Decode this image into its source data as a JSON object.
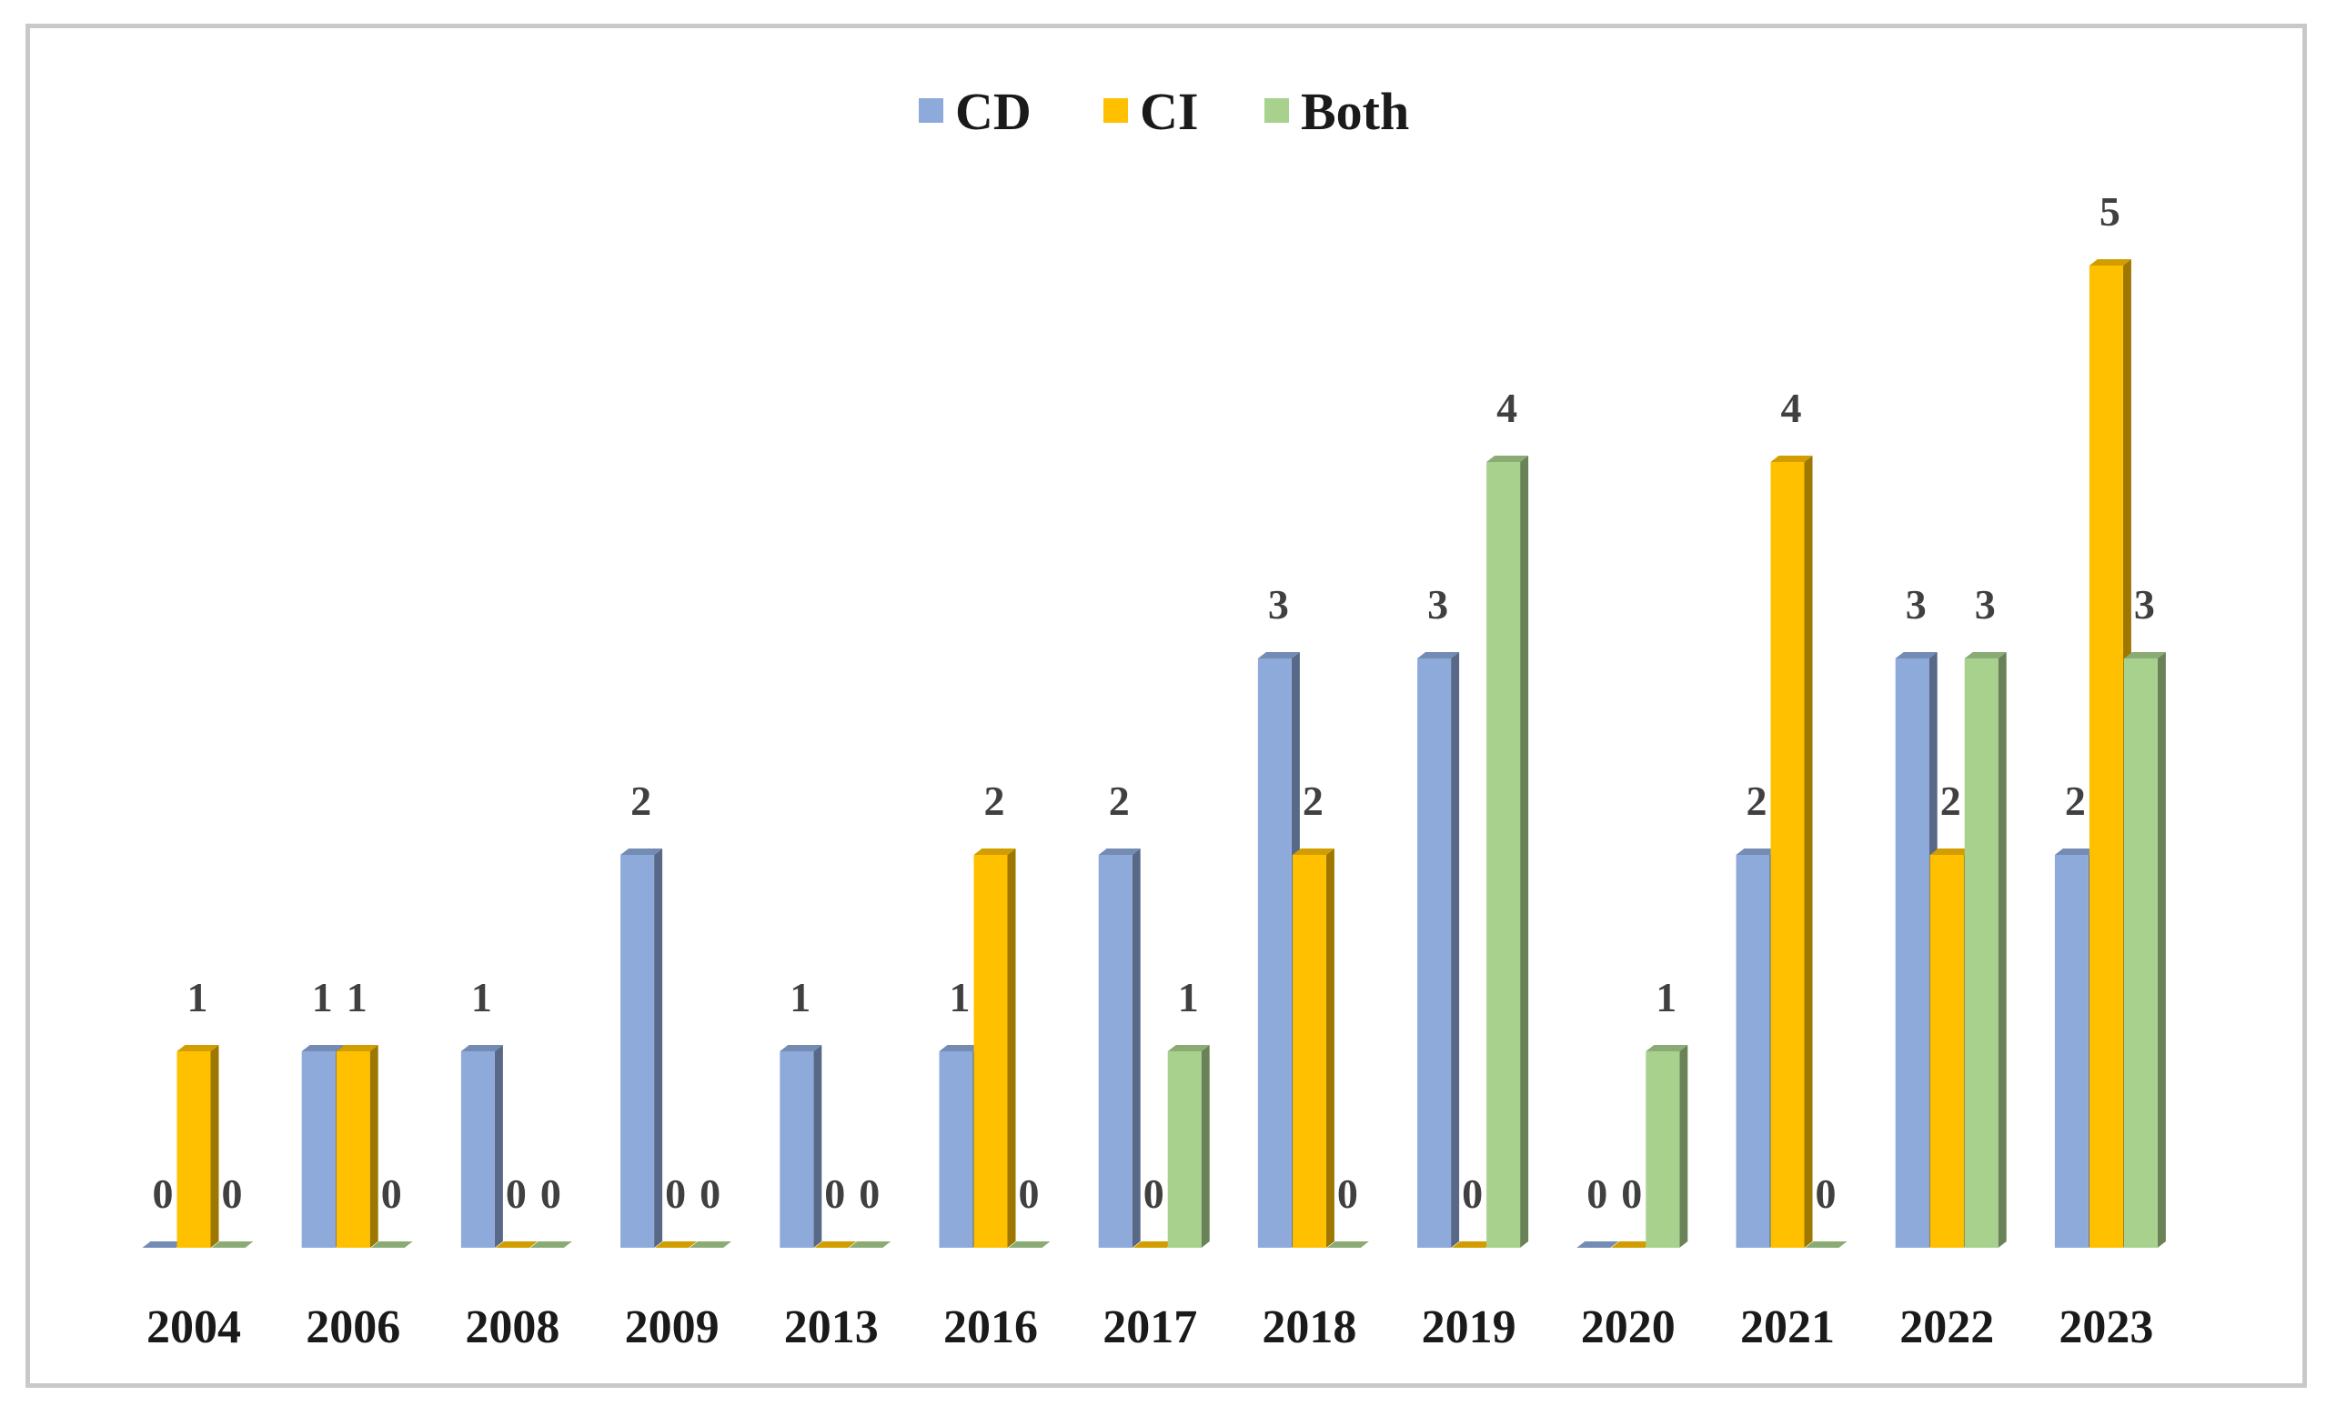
{
  "chart_data": {
    "type": "bar",
    "title": "",
    "xlabel": "",
    "ylabel": "",
    "ylim": [
      0,
      5
    ],
    "grid": false,
    "legend_position": "top-center",
    "categories": [
      "2004",
      "2006",
      "2008",
      "2009",
      "2013",
      "2016",
      "2017",
      "2018",
      "2019",
      "2020",
      "2021",
      "2022",
      "2023"
    ],
    "series": [
      {
        "name": "CD",
        "color": "#8eaadb",
        "values": [
          0,
          1,
          1,
          2,
          1,
          1,
          2,
          3,
          3,
          0,
          2,
          3,
          2
        ]
      },
      {
        "name": "CI",
        "color": "#ffc000",
        "values": [
          1,
          1,
          0,
          0,
          0,
          2,
          0,
          2,
          0,
          0,
          4,
          2,
          5
        ]
      },
      {
        "name": "Both",
        "color": "#a9d18e",
        "values": [
          0,
          0,
          0,
          0,
          0,
          0,
          1,
          0,
          4,
          1,
          0,
          3,
          3
        ]
      }
    ]
  }
}
